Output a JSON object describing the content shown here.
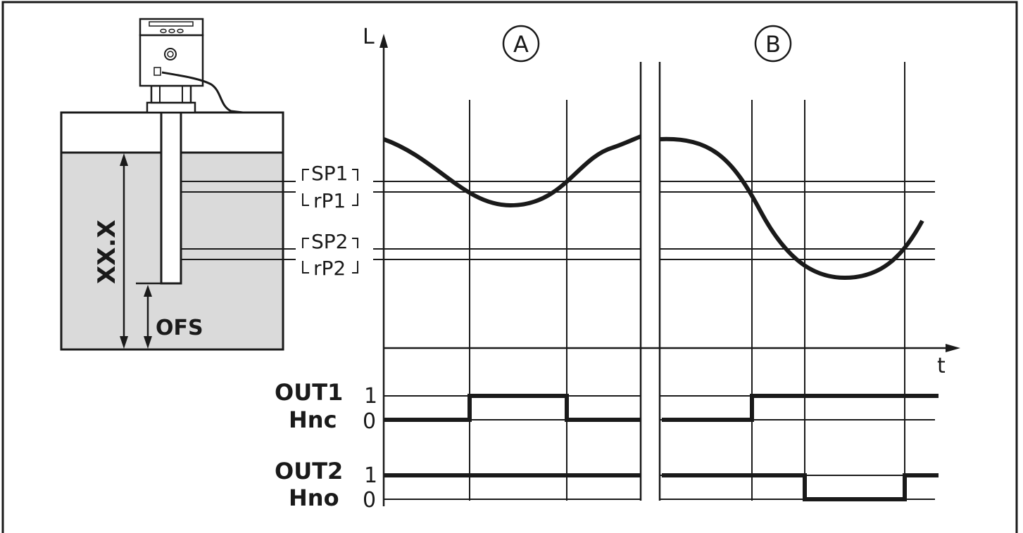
{
  "colors": {
    "ink": "#1a1a1a",
    "liquid": "#dadada",
    "background": "#ffffff"
  },
  "sensor": {
    "measure_label": "XX.X",
    "offset_label": "OFS"
  },
  "diagram": {
    "y_axis_label": "L",
    "x_axis_label": "t",
    "section_a_label": "A",
    "section_b_label": "B",
    "levels": {
      "sp1": "SP1",
      "rp1": "rP1",
      "sp2": "SP2",
      "rp2": "rP2"
    },
    "outputs": [
      {
        "name": "OUT1",
        "mode": "Hnc",
        "high": "1",
        "low": "0"
      },
      {
        "name": "OUT2",
        "mode": "Hno",
        "high": "1",
        "low": "0"
      }
    ]
  }
}
